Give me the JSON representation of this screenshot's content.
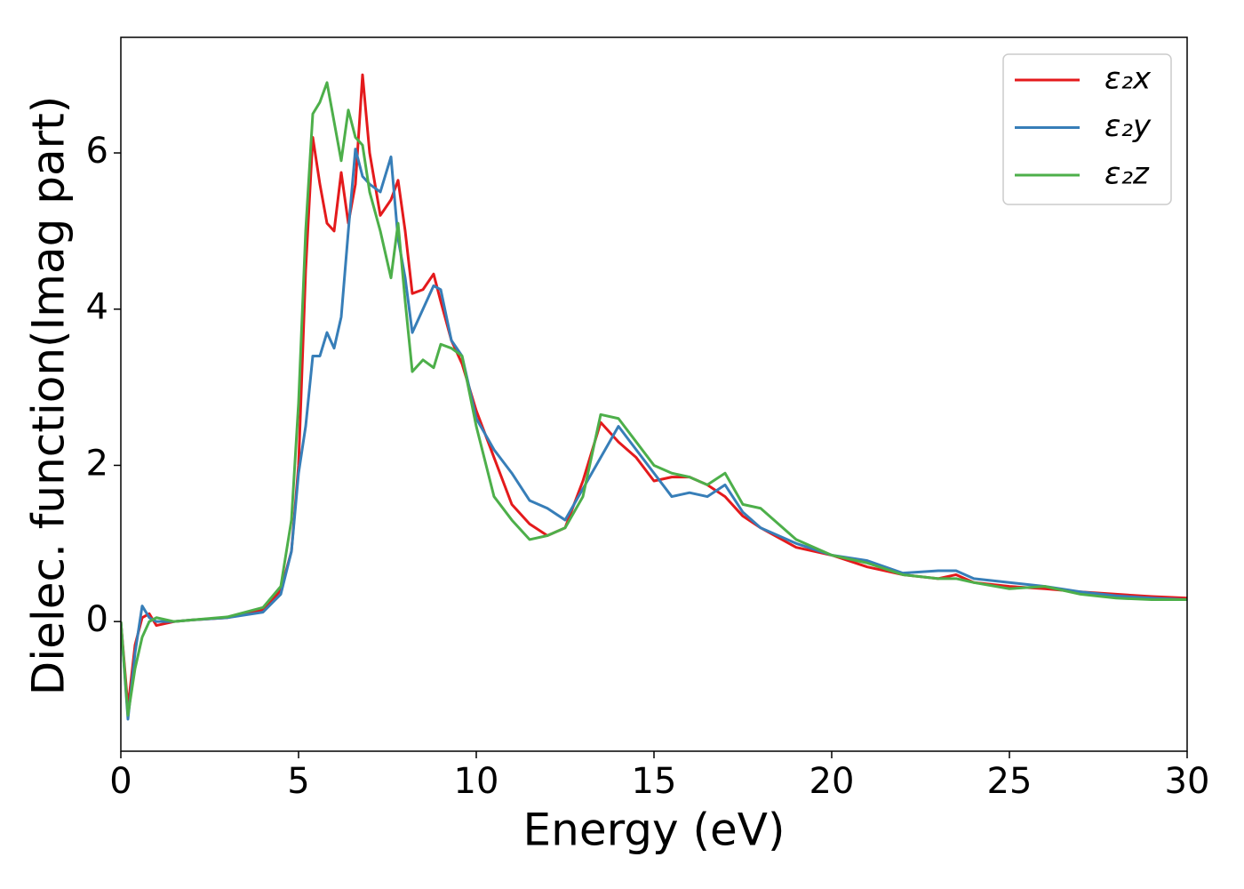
{
  "chart_data": {
    "type": "line",
    "x_label": "Energy (eV)",
    "y_label": "Dielec. function(Imag part)",
    "x": [
      0,
      0.2,
      0.4,
      0.6,
      0.8,
      1.0,
      1.5,
      2,
      3,
      4,
      4.5,
      4.8,
      5,
      5.2,
      5.4,
      5.6,
      5.8,
      6.0,
      6.2,
      6.4,
      6.6,
      6.8,
      7.0,
      7.3,
      7.6,
      7.8,
      8.0,
      8.2,
      8.5,
      8.8,
      9.0,
      9.3,
      9.6,
      10,
      10.5,
      11,
      11.5,
      12,
      12.5,
      13,
      13.5,
      14,
      14.5,
      15,
      15.5,
      16,
      16.5,
      17,
      17.5,
      18,
      19,
      20,
      21,
      22,
      23,
      23.5,
      24,
      25,
      26,
      27,
      28,
      29,
      30
    ],
    "series": [
      {
        "name": "ε₂x",
        "color": "#e41a1c",
        "values": [
          0,
          -1.1,
          -0.3,
          0.05,
          0.1,
          -0.05,
          0,
          0.02,
          0.05,
          0.15,
          0.4,
          0.9,
          2.0,
          4.5,
          6.2,
          5.6,
          5.1,
          5.0,
          5.75,
          5.1,
          5.6,
          7.0,
          6.0,
          5.2,
          5.4,
          5.65,
          5.0,
          4.2,
          4.25,
          4.45,
          4.1,
          3.6,
          3.3,
          2.7,
          2.1,
          1.5,
          1.25,
          1.1,
          1.2,
          1.8,
          2.55,
          2.3,
          2.1,
          1.8,
          1.85,
          1.85,
          1.75,
          1.6,
          1.35,
          1.2,
          0.95,
          0.85,
          0.7,
          0.6,
          0.55,
          0.6,
          0.5,
          0.45,
          0.42,
          0.38,
          0.35,
          0.32,
          0.3
        ]
      },
      {
        "name": "ε₂y",
        "color": "#377eb8",
        "values": [
          0,
          -1.25,
          -0.4,
          0.2,
          0.05,
          0,
          0,
          0.02,
          0.05,
          0.12,
          0.35,
          0.9,
          1.9,
          2.5,
          3.4,
          3.4,
          3.7,
          3.5,
          3.9,
          5.0,
          6.05,
          5.7,
          5.6,
          5.5,
          5.95,
          4.9,
          4.4,
          3.7,
          4.0,
          4.3,
          4.25,
          3.6,
          3.4,
          2.6,
          2.2,
          1.9,
          1.55,
          1.45,
          1.3,
          1.7,
          2.1,
          2.5,
          2.2,
          1.9,
          1.6,
          1.65,
          1.6,
          1.75,
          1.4,
          1.2,
          1.0,
          0.85,
          0.78,
          0.62,
          0.65,
          0.65,
          0.55,
          0.5,
          0.45,
          0.38,
          0.33,
          0.3,
          0.28
        ]
      },
      {
        "name": "ε₂z",
        "color": "#4daf4a",
        "values": [
          0,
          -1.2,
          -0.6,
          -0.2,
          0,
          0.05,
          0,
          0.02,
          0.06,
          0.18,
          0.45,
          1.3,
          2.8,
          5.0,
          6.5,
          6.65,
          6.9,
          6.4,
          5.9,
          6.55,
          6.2,
          6.1,
          5.5,
          5.0,
          4.4,
          5.1,
          4.1,
          3.2,
          3.35,
          3.25,
          3.55,
          3.5,
          3.4,
          2.5,
          1.6,
          1.3,
          1.05,
          1.1,
          1.2,
          1.6,
          2.65,
          2.6,
          2.3,
          2.0,
          1.9,
          1.85,
          1.75,
          1.9,
          1.5,
          1.45,
          1.05,
          0.85,
          0.75,
          0.6,
          0.55,
          0.55,
          0.5,
          0.42,
          0.45,
          0.35,
          0.3,
          0.28,
          0.28
        ]
      }
    ],
    "xlim": [
      0,
      30
    ],
    "xticks": [
      0,
      5,
      10,
      15,
      20,
      25,
      30
    ],
    "ylim": [
      -1.66,
      7.48
    ],
    "yticks": [
      0,
      2,
      4,
      6
    ],
    "grid": false,
    "legend": "upper right"
  }
}
